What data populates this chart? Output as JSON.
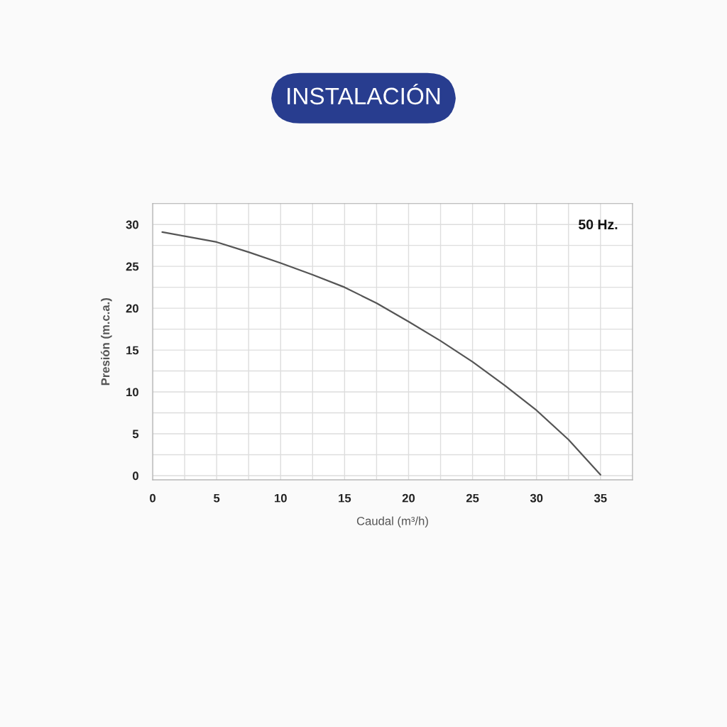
{
  "chart_data": {
    "type": "line",
    "title": "INSTALACIÓN",
    "xlabel": "Caudal (m³/h)",
    "ylabel": "Presión (m.c.a.)",
    "x": [
      0.75,
      2.5,
      5,
      7.5,
      10,
      12.5,
      15,
      17.5,
      20,
      22.5,
      25,
      27.5,
      30,
      32.5,
      35
    ],
    "series": [
      {
        "color": "#555555",
        "values": [
          29.1,
          28.6,
          27.9,
          26.7,
          25.4,
          24.0,
          22.5,
          20.6,
          18.4,
          16.1,
          13.6,
          10.8,
          7.8,
          4.3,
          0.1
        ]
      }
    ],
    "xlim": [
      0,
      37.5
    ],
    "ylim": [
      -0.5,
      32.5
    ],
    "xticks": [
      0,
      {
        "value": 2.5,
        "label": null
      },
      5,
      {
        "value": 7.5,
        "label": null
      },
      10,
      {
        "value": 12.5,
        "label": null
      },
      15,
      {
        "value": 17.5,
        "label": null
      },
      20,
      {
        "value": 22.5,
        "label": null
      },
      25,
      {
        "value": 27.5,
        "label": null
      },
      30,
      {
        "value": 32.5,
        "label": null
      },
      35
    ],
    "yticks": [
      0,
      {
        "value": 2.5,
        "label": null
      },
      5,
      {
        "value": 7.5,
        "label": null
      },
      10,
      {
        "value": 12.5,
        "label": null
      },
      15,
      {
        "value": 17.5,
        "label": null
      },
      20,
      {
        "value": 22.5,
        "label": null
      },
      25,
      {
        "value": 27.5,
        "label": null
      },
      30
    ],
    "grid": true,
    "line_style": "solid",
    "marker": "none",
    "legend": false,
    "annotations": [
      "50 Hz."
    ]
  }
}
